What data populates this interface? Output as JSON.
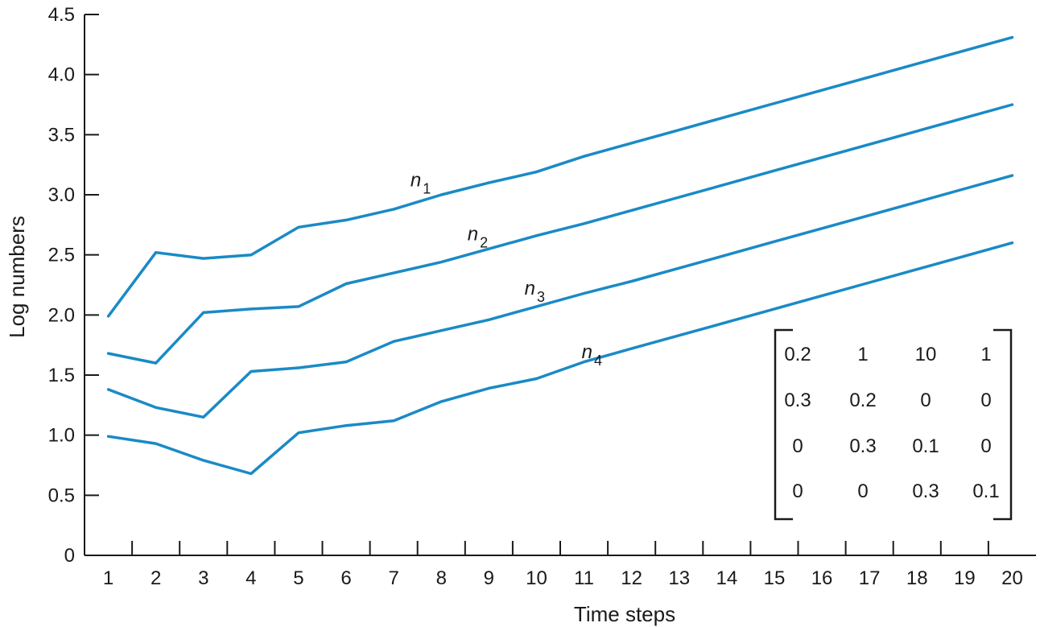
{
  "chart_data": {
    "type": "line",
    "title": "",
    "xlabel": "Time steps",
    "ylabel": "Log numbers",
    "x": [
      1,
      2,
      3,
      4,
      5,
      6,
      7,
      8,
      9,
      10,
      11,
      12,
      13,
      14,
      15,
      16,
      17,
      18,
      19,
      20
    ],
    "xlim": [
      0.5,
      20.5
    ],
    "ylim": [
      0,
      4.5
    ],
    "yticks": [
      "0",
      "0.5",
      "1.0",
      "1.5",
      "2.0",
      "2.5",
      "3.0",
      "3.5",
      "4.0",
      "4.5"
    ],
    "xticks": [
      "1",
      "2",
      "3",
      "4",
      "5",
      "6",
      "7",
      "8",
      "9",
      "10",
      "11",
      "12",
      "13",
      "14",
      "15",
      "16",
      "17",
      "18",
      "19",
      "20"
    ],
    "grid": false,
    "line_color": "#1a8ac6",
    "series": [
      {
        "name": "n",
        "subscript": "1",
        "label_at": [
          7.35,
          3.07
        ],
        "values": [
          1.99,
          2.52,
          2.47,
          2.5,
          2.73,
          2.79,
          2.88,
          3.0,
          3.1,
          3.19,
          3.32,
          3.43,
          3.54,
          3.65,
          3.76,
          3.87,
          3.98,
          4.09,
          4.2,
          4.31
        ]
      },
      {
        "name": "n",
        "subscript": "2",
        "label_at": [
          8.55,
          2.62
        ],
        "values": [
          1.68,
          1.6,
          2.02,
          2.05,
          2.07,
          2.26,
          2.35,
          2.44,
          2.55,
          2.66,
          2.76,
          2.87,
          2.98,
          3.09,
          3.2,
          3.31,
          3.42,
          3.53,
          3.64,
          3.75
        ]
      },
      {
        "name": "n",
        "subscript": "3",
        "label_at": [
          9.75,
          2.17
        ],
        "values": [
          1.38,
          1.23,
          1.15,
          1.53,
          1.56,
          1.61,
          1.78,
          1.87,
          1.96,
          2.07,
          2.18,
          2.28,
          2.39,
          2.5,
          2.61,
          2.72,
          2.83,
          2.94,
          3.05,
          3.16
        ]
      },
      {
        "name": "n",
        "subscript": "4",
        "label_at": [
          10.95,
          1.64
        ],
        "values": [
          0.99,
          0.93,
          0.79,
          0.68,
          1.02,
          1.08,
          1.12,
          1.28,
          1.39,
          1.47,
          1.61,
          1.72,
          1.83,
          1.94,
          2.05,
          2.16,
          2.27,
          2.38,
          2.49,
          2.6
        ]
      }
    ],
    "annotations": {
      "matrix": [
        [
          "0.2",
          "1",
          "10",
          "1"
        ],
        [
          "0.3",
          "0.2",
          "0",
          "0"
        ],
        [
          "0",
          "0.3",
          "0.1",
          "0"
        ],
        [
          "0",
          "0",
          "0.3",
          "0.1"
        ]
      ]
    }
  }
}
